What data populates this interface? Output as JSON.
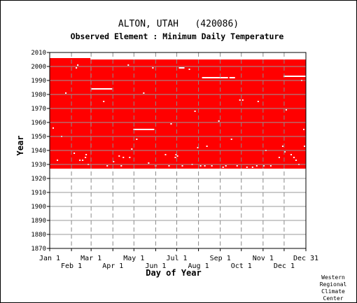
{
  "chart_data": {
    "type": "heatmap",
    "title": "ALTON, UTAH   (420086)",
    "subtitle": "Observed Element : Minimum Daily Temperature",
    "xlabel": "Day of Year",
    "ylabel": "Year",
    "ylim": [
      1870,
      2010
    ],
    "xlim": [
      1,
      366
    ],
    "y_ticks": [
      2010,
      2000,
      1990,
      1980,
      1970,
      1960,
      1950,
      1940,
      1930,
      1920,
      1910,
      1900,
      1890,
      1880,
      1870
    ],
    "x_ticks_top": [
      {
        "label": "Jan 1",
        "day": 1
      },
      {
        "label": "Mar 1",
        "day": 60
      },
      {
        "label": "May 1",
        "day": 121
      },
      {
        "label": "Jul 1",
        "day": 182
      },
      {
        "label": "Sep 1",
        "day": 244
      },
      {
        "label": "Nov 1",
        "day": 305
      },
      {
        "label": "Dec 31",
        "day": 366
      }
    ],
    "x_ticks_bottom": [
      {
        "label": "Feb 1",
        "day": 32
      },
      {
        "label": "Apr 1",
        "day": 91
      },
      {
        "label": "Jun 1",
        "day": 152
      },
      {
        "label": "Aug 1",
        "day": 213
      },
      {
        "label": "Oct 1",
        "day": 274
      },
      {
        "label": "Dec 1",
        "day": 335
      }
    ],
    "data_color": "#ff0000",
    "record_periods": [
      {
        "day_start": 1,
        "day_end": 59,
        "year_start": 1927,
        "year_end": 2006
      },
      {
        "day_start": 59,
        "day_end": 366,
        "year_start": 1927,
        "year_end": 2005
      }
    ],
    "gaps": [
      {
        "day_start": 60,
        "day_end": 90,
        "year": 1984
      },
      {
        "day_start": 120,
        "day_end": 150,
        "year": 1955
      },
      {
        "day_start": 185,
        "day_end": 193,
        "year": 1999
      },
      {
        "day_start": 218,
        "day_end": 255,
        "year": 1992
      },
      {
        "day_start": 257,
        "day_end": 265,
        "year": 1992
      },
      {
        "day_start": 334,
        "day_end": 366,
        "year": 1993
      }
    ],
    "scattered_missing": [
      {
        "day": 6,
        "year": 1956
      },
      {
        "day": 12,
        "year": 1933
      },
      {
        "day": 18,
        "year": 1950
      },
      {
        "day": 24,
        "year": 1981
      },
      {
        "day": 36,
        "year": 1938
      },
      {
        "day": 39,
        "year": 1999
      },
      {
        "day": 41,
        "year": 2001
      },
      {
        "day": 44,
        "year": 1933
      },
      {
        "day": 48,
        "year": 1933
      },
      {
        "day": 52,
        "year": 1935
      },
      {
        "day": 53,
        "year": 1937
      },
      {
        "day": 56,
        "year": 1930
      },
      {
        "day": 78,
        "year": 1975
      },
      {
        "day": 83,
        "year": 1929
      },
      {
        "day": 92,
        "year": 1932
      },
      {
        "day": 100,
        "year": 1936
      },
      {
        "day": 103,
        "year": 1929
      },
      {
        "day": 106,
        "year": 1935
      },
      {
        "day": 113,
        "year": 2001
      },
      {
        "day": 115,
        "year": 1935
      },
      {
        "day": 118,
        "year": 1941
      },
      {
        "day": 125,
        "year": 1948
      },
      {
        "day": 135,
        "year": 1981
      },
      {
        "day": 142,
        "year": 1931
      },
      {
        "day": 148,
        "year": 1999
      },
      {
        "day": 152,
        "year": 1929
      },
      {
        "day": 166,
        "year": 1937
      },
      {
        "day": 171,
        "year": 1929
      },
      {
        "day": 174,
        "year": 1959
      },
      {
        "day": 180,
        "year": 1935
      },
      {
        "day": 181,
        "year": 1937
      },
      {
        "day": 183,
        "year": 1936
      },
      {
        "day": 190,
        "year": 1929
      },
      {
        "day": 200,
        "year": 1998
      },
      {
        "day": 204,
        "year": 1930
      },
      {
        "day": 208,
        "year": 1968
      },
      {
        "day": 212,
        "year": 1942
      },
      {
        "day": 216,
        "year": 1929
      },
      {
        "day": 222,
        "year": 1929
      },
      {
        "day": 225,
        "year": 1943
      },
      {
        "day": 232,
        "year": 1929
      },
      {
        "day": 242,
        "year": 1961
      },
      {
        "day": 248,
        "year": 1928
      },
      {
        "day": 252,
        "year": 1929
      },
      {
        "day": 260,
        "year": 1948
      },
      {
        "day": 268,
        "year": 1929
      },
      {
        "day": 272,
        "year": 1976
      },
      {
        "day": 276,
        "year": 1976
      },
      {
        "day": 282,
        "year": 1928
      },
      {
        "day": 290,
        "year": 1928
      },
      {
        "day": 296,
        "year": 1929
      },
      {
        "day": 298,
        "year": 1975
      },
      {
        "day": 306,
        "year": 1929
      },
      {
        "day": 309,
        "year": 1940
      },
      {
        "day": 316,
        "year": 1929
      },
      {
        "day": 328,
        "year": 1935
      },
      {
        "day": 333,
        "year": 1943
      },
      {
        "day": 336,
        "year": 1939
      },
      {
        "day": 338,
        "year": 1969
      },
      {
        "day": 345,
        "year": 1937
      },
      {
        "day": 349,
        "year": 1935
      },
      {
        "day": 352,
        "year": 1933
      },
      {
        "day": 356,
        "year": 1930
      },
      {
        "day": 360,
        "year": 1990
      },
      {
        "day": 363,
        "year": 1955
      },
      {
        "day": 364,
        "year": 1943
      }
    ],
    "grid": true
  },
  "credit": {
    "line1": "Western",
    "line2": "Regional",
    "line3": "Climate",
    "line4": "Center"
  }
}
